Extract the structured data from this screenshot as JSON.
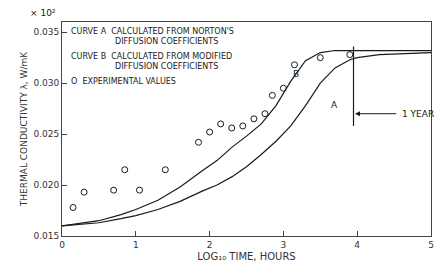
{
  "chart_data": {
    "type": "line",
    "xlabel": "LOG₁₀ TIME, HOURS",
    "ylabel": "THERMAL CONDUCTIVITY λ, W/mK",
    "y_unit_note": "× 10²",
    "xlim": [
      0,
      5
    ],
    "ylim": [
      0.015,
      0.036
    ],
    "xticks": [
      0,
      1,
      2,
      3,
      4,
      5
    ],
    "yticks": [
      0.015,
      {
        "value": 0.02,
        "label": "0.020"
      },
      0.025,
      {
        "value": 0.03,
        "label": "0.030"
      },
      0.035
    ],
    "grid": false,
    "color": "#1a1a1a",
    "series": [
      {
        "type": "line",
        "line_style": "solid",
        "x": [
          0,
          0.2,
          0.5,
          0.8,
          1.0,
          1.3,
          1.6,
          1.9,
          2.1,
          2.3,
          2.5,
          2.7,
          2.9,
          3.1,
          3.3,
          3.5,
          3.7,
          3.9,
          4.0,
          4.3,
          5.0
        ],
        "values": [
          0.016,
          0.0161,
          0.0163,
          0.0167,
          0.017,
          0.0176,
          0.0184,
          0.0194,
          0.02,
          0.0208,
          0.0218,
          0.023,
          0.0243,
          0.0258,
          0.0278,
          0.03,
          0.0315,
          0.0323,
          0.0325,
          0.0328,
          0.033
        ]
      },
      {
        "type": "line",
        "line_style": "solid",
        "x": [
          0,
          0.2,
          0.5,
          0.8,
          1.0,
          1.3,
          1.6,
          1.9,
          2.1,
          2.3,
          2.5,
          2.7,
          2.9,
          3.1,
          3.3,
          3.5,
          3.7,
          3.9,
          4.0,
          4.3,
          5.0
        ],
        "values": [
          0.016,
          0.0162,
          0.0165,
          0.0171,
          0.0176,
          0.0185,
          0.0198,
          0.0214,
          0.0224,
          0.0237,
          0.0248,
          0.026,
          0.0278,
          0.0302,
          0.0322,
          0.033,
          0.0332,
          0.0332,
          0.0332,
          0.0332,
          0.0332
        ]
      },
      {
        "type": "scatter",
        "marker": "circle-open",
        "x": [
          0.15,
          0.3,
          0.7,
          0.85,
          1.05,
          1.4,
          1.85,
          2.0,
          2.15,
          2.3,
          2.45,
          2.6,
          2.75,
          2.85,
          3.0,
          3.15,
          3.5,
          3.9
        ],
        "values": [
          0.0178,
          0.0193,
          0.0195,
          0.0215,
          0.0195,
          0.0215,
          0.0242,
          0.0252,
          0.026,
          0.0256,
          0.0258,
          0.0265,
          0.027,
          0.0288,
          0.0295,
          0.0318,
          0.0325,
          0.0328
        ]
      },
      {
        "type": "line",
        "line_style": "solid",
        "x": [
          3.95,
          3.95
        ],
        "values": [
          0.0258,
          0.0336
        ]
      }
    ],
    "annotations": [
      {
        "text": "A",
        "x": 3.62,
        "y": 0.02785
      },
      {
        "text": "B",
        "x": 3.1,
        "y": 0.03085
      },
      {
        "text": "1 YEAR",
        "x": 4.58,
        "y": 0.027,
        "arrow_from": 4.55,
        "arrow_to": 3.97
      }
    ],
    "key_text": [
      [
        "CURVE A  CALCULATED FROM NORTON'S",
        "DIFFUSION COEFFICIENTS"
      ],
      [
        "CURVE B  CALCULATED FROM MODIFIED",
        "DIFFUSION COEFFICIENTS"
      ],
      [
        "O  EXPERIMENTAL VALUES"
      ]
    ]
  }
}
